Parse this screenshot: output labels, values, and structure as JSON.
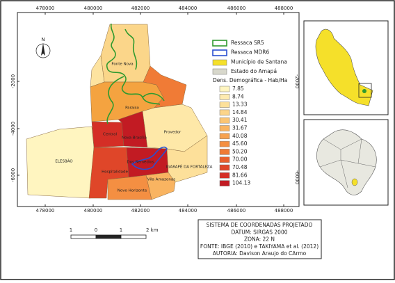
{
  "map": {
    "north_label": "N",
    "x_ticks": [
      "478000",
      "480000",
      "482000",
      "484000",
      "486000",
      "488000"
    ],
    "y_ticks": [
      "-2000",
      "-4000",
      "-6000"
    ],
    "neighborhoods": [
      "Fonte Nova",
      "Paraiso",
      "Central",
      "Nova Brasília",
      "Provedor",
      "ELESBÃO",
      "Hospitalidade",
      "Dos Remédios",
      "IGARAPÉ DA FORTALEZA",
      "Vila Amazonas",
      "Novo Horizonte"
    ]
  },
  "legend": {
    "items": [
      "Ressaca SR5",
      "Ressaca MDR6",
      "Município de Santana",
      "Estado do Amapá"
    ],
    "density_title": "Dens. Demográfica - Hab/Ha",
    "classes": [
      "7.85",
      "8.74",
      "13.33",
      "14.84",
      "30.41",
      "31.67",
      "40.08",
      "45.60",
      "50.20",
      "70.00",
      "70.48",
      "81.66",
      "104.13"
    ]
  },
  "insets": {
    "top_y_tick": "-2000",
    "bottom_y_tick": "-6000"
  },
  "scale_bar": {
    "labels": [
      "1",
      "0",
      "1",
      "2 km"
    ]
  },
  "info": {
    "lines": [
      "SISTEMA DE COORDENADAS PROJETADO",
      "DATUM: SIRGAS 2000",
      "ZONA: 22 N",
      "FONTE: IBGE (2010) e TAKIYAMA et al. (2012)",
      "AUTORIA: Davison Araujo do CArmo"
    ]
  }
}
